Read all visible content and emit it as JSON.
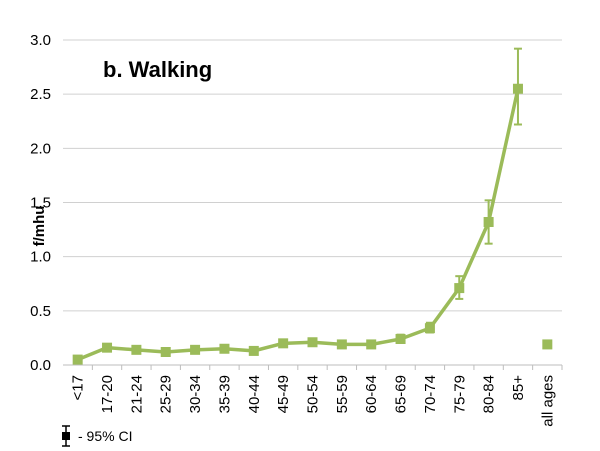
{
  "chart_data": {
    "type": "line",
    "title": "b. Walking",
    "ylabel": "f/mhu",
    "xlabel": "",
    "ylim": [
      0,
      3.0
    ],
    "yticks": [
      "0.0",
      "0.5",
      "1.0",
      "1.5",
      "2.0",
      "2.5",
      "3.0"
    ],
    "grid": true,
    "color": "#9bbb59",
    "categories": [
      "<17",
      "17-20",
      "21-24",
      "25-29",
      "30-34",
      "35-39",
      "40-44",
      "45-49",
      "50-54",
      "55-59",
      "60-64",
      "65-69",
      "70-74",
      "75-79",
      "80-84",
      "85+"
    ],
    "values": [
      0.05,
      0.16,
      0.14,
      0.12,
      0.14,
      0.15,
      0.13,
      0.2,
      0.21,
      0.19,
      0.19,
      0.24,
      0.34,
      0.71,
      1.32,
      2.55
    ],
    "ci_low": [
      0.04,
      0.14,
      0.12,
      0.1,
      0.12,
      0.13,
      0.11,
      0.18,
      0.19,
      0.17,
      0.17,
      0.21,
      0.3,
      0.61,
      1.12,
      2.22
    ],
    "ci_high": [
      0.06,
      0.18,
      0.16,
      0.14,
      0.16,
      0.17,
      0.15,
      0.22,
      0.23,
      0.21,
      0.21,
      0.28,
      0.39,
      0.82,
      1.52,
      2.92
    ],
    "summary_category": "all ages",
    "summary_value": 0.19,
    "legend_text": "- 95% CI",
    "legend_placement": "bottom-left"
  }
}
